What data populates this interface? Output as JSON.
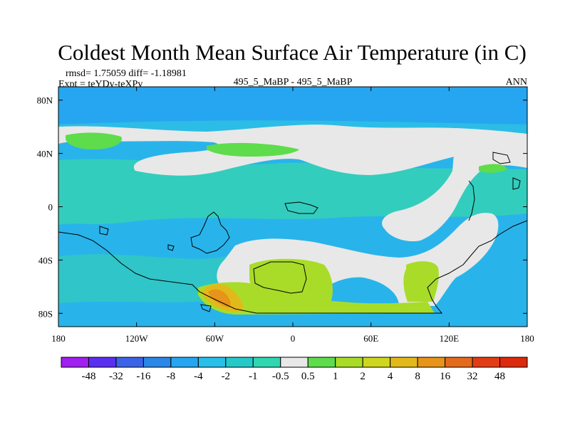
{
  "chart_data": {
    "type": "heatmap",
    "title": "Coldest Month Mean Surface Air Temperature (in C)",
    "stats_label": "rmsd= 1.75059 diff= -1.18981",
    "expt_label": "Expt = teYDv-teXPv",
    "center_label": "495_5_MaBP - 495_5_MaBP",
    "right_label": "ANN",
    "x_ticks": [
      "180",
      "120W",
      "60W",
      "0",
      "60E",
      "120E",
      "180"
    ],
    "x_tick_values": [
      -180,
      -120,
      -60,
      0,
      60,
      120,
      180
    ],
    "y_ticks": [
      "80N",
      "40N",
      "0",
      "40S",
      "80S"
    ],
    "y_tick_values": [
      80,
      40,
      0,
      -40,
      -80
    ],
    "xlim": [
      -180,
      180
    ],
    "ylim": [
      -90,
      90
    ],
    "colorbar": {
      "labels": [
        "-48",
        "-32",
        "-16",
        "-8",
        "-4",
        "-2",
        "-1",
        "-0.5",
        "0.5",
        "1",
        "2",
        "4",
        "8",
        "16",
        "32",
        "48"
      ],
      "colors": [
        "#a020f0",
        "#5a2ff0",
        "#3b63e6",
        "#2a87e6",
        "#26a6f0",
        "#28bfea",
        "#25c9c8",
        "#2fd7b0",
        "#e8e8e8",
        "#5edc4b",
        "#a8dc28",
        "#cfd61e",
        "#e2b91a",
        "#e6941a",
        "#e46a1c",
        "#e23c14",
        "#dc2a0c"
      ]
    },
    "regions": [
      {
        "level": "-4 to -2",
        "description": "northern high latitudes"
      },
      {
        "level": "-0.5 to 0.5",
        "description": "northern midlatitude band"
      },
      {
        "level": "-0.5 to 0.5",
        "description": "southern subtropical band"
      },
      {
        "level": "1 to 4",
        "description": "southern continent interior"
      },
      {
        "level": "4 to 16",
        "description": "southwest coast warm anomaly"
      }
    ]
  }
}
